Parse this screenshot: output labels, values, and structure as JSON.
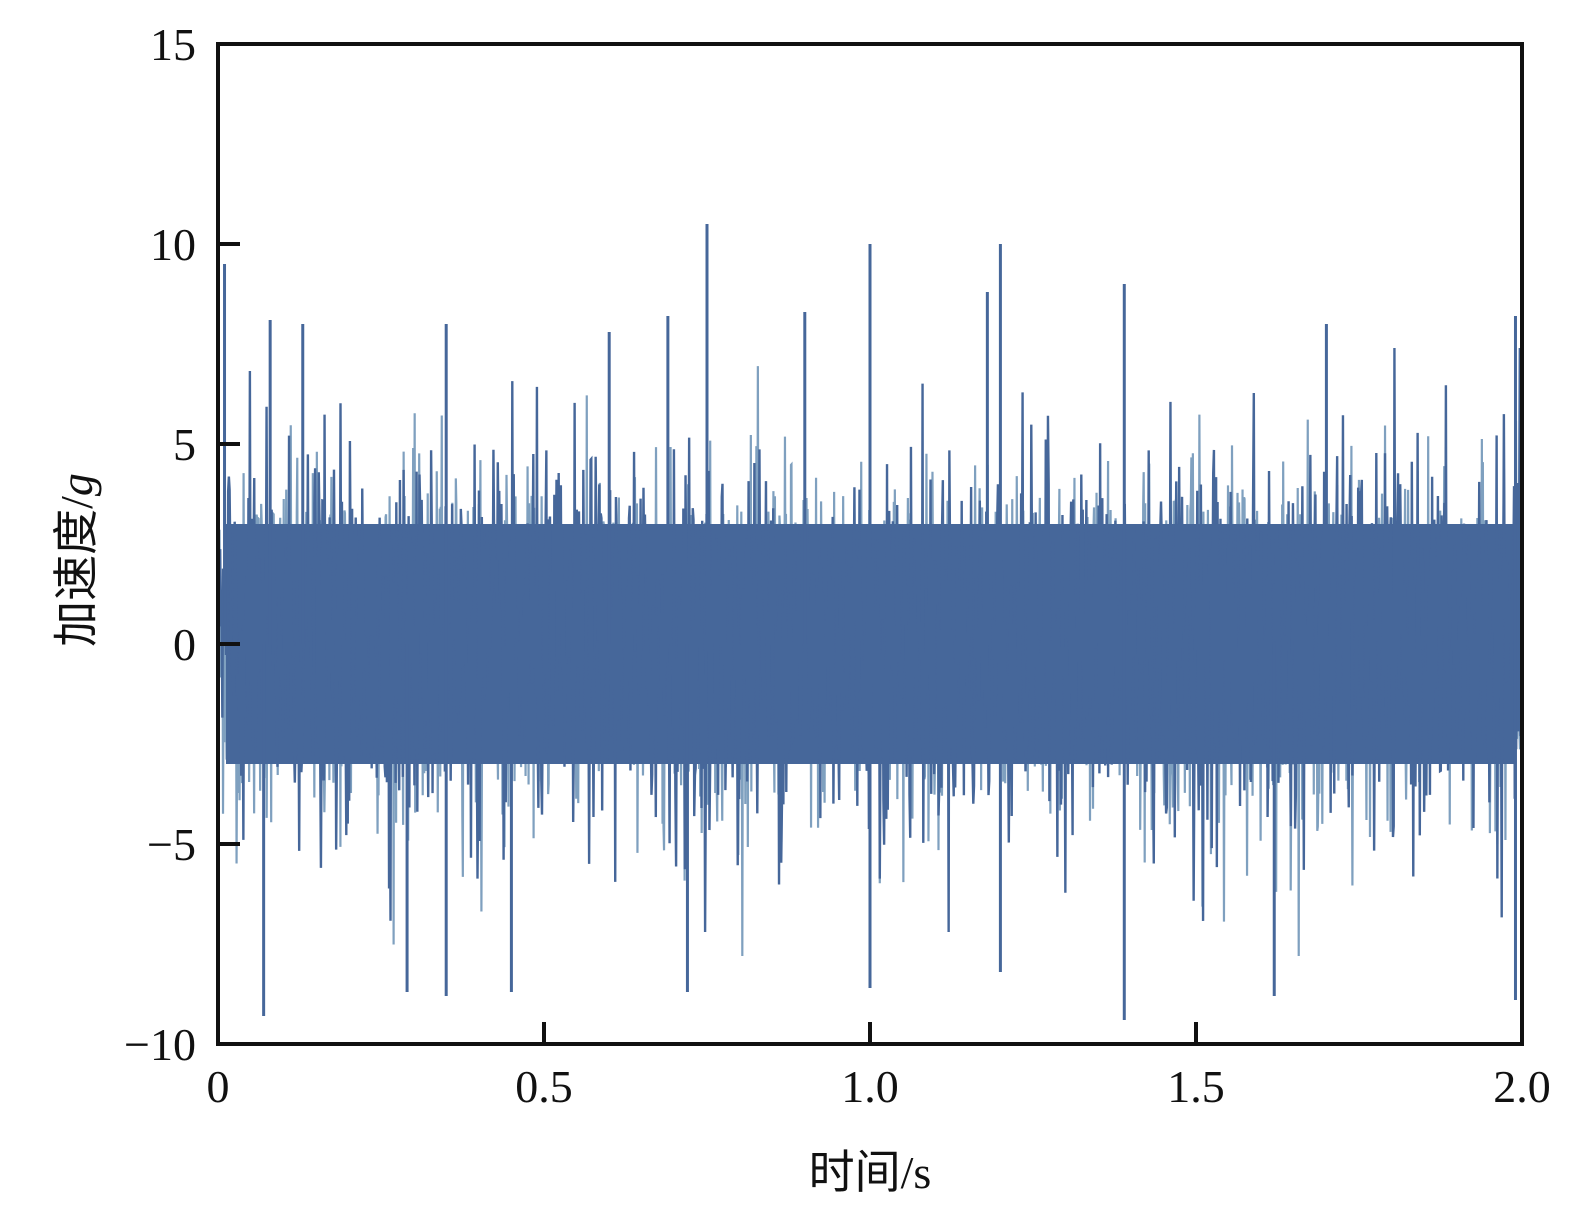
{
  "chart_data": {
    "type": "line",
    "title": "",
    "xlabel": "时间/s",
    "ylabel_prefix": "加速度/",
    "ylabel_unit": "g",
    "xlim": [
      0,
      2.0
    ],
    "ylim": [
      -10,
      15
    ],
    "x_ticks": [
      "0",
      "0.5",
      "1.0",
      "1.5",
      "2.0"
    ],
    "x_tick_values": [
      0,
      0.5,
      1.0,
      1.5,
      2.0
    ],
    "y_ticks": [
      "15",
      "10",
      "5",
      "0",
      "−5",
      "−10"
    ],
    "y_tick_values": [
      15,
      10,
      5,
      0,
      -5,
      -10
    ],
    "grid": false,
    "legend": "none",
    "colors": {
      "series": "#46679a",
      "series_light": "#7fa0bf",
      "frame": "#111111"
    },
    "series": [
      {
        "description_values": "random vibration acceleration signal, roughly Gaussian, zero mean, core band about ±3.5 g",
        "peaks_positive": [
          {
            "x": 0.01,
            "y": 9.5
          },
          {
            "x": 0.08,
            "y": 8.1
          },
          {
            "x": 0.13,
            "y": 8.0
          },
          {
            "x": 0.35,
            "y": 8.0
          },
          {
            "x": 0.6,
            "y": 7.8
          },
          {
            "x": 0.69,
            "y": 8.2
          },
          {
            "x": 0.75,
            "y": 10.5
          },
          {
            "x": 0.9,
            "y": 8.3
          },
          {
            "x": 1.0,
            "y": 10.0
          },
          {
            "x": 1.18,
            "y": 8.8
          },
          {
            "x": 1.2,
            "y": 10.0
          },
          {
            "x": 1.39,
            "y": 9.0
          },
          {
            "x": 1.7,
            "y": 8.0
          },
          {
            "x": 1.99,
            "y": 8.2
          }
        ],
        "peaks_negative": [
          {
            "x": 0.07,
            "y": -9.3
          },
          {
            "x": 0.29,
            "y": -8.7
          },
          {
            "x": 0.35,
            "y": -8.8
          },
          {
            "x": 0.45,
            "y": -8.7
          },
          {
            "x": 0.72,
            "y": -8.7
          },
          {
            "x": 1.0,
            "y": -8.6
          },
          {
            "x": 1.2,
            "y": -8.2
          },
          {
            "x": 1.39,
            "y": -9.4
          },
          {
            "x": 1.62,
            "y": -8.8
          },
          {
            "x": 1.99,
            "y": -8.9
          }
        ]
      }
    ]
  }
}
